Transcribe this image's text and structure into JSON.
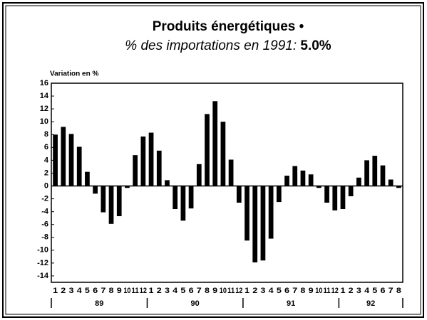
{
  "chart_data": {
    "type": "bar",
    "title": "Produits énergétiques •",
    "subtitle": "% des importations en 1991:",
    "subtitle_value": "5.0%",
    "y_label": "Variation en %",
    "categories": [
      "1",
      "2",
      "3",
      "4",
      "5",
      "6",
      "7",
      "8",
      "9",
      "10",
      "11",
      "12",
      "1",
      "2",
      "3",
      "4",
      "5",
      "6",
      "7",
      "8",
      "9",
      "10",
      "11",
      "12",
      "1",
      "2",
      "3",
      "4",
      "5",
      "6",
      "7",
      "8",
      "9",
      "10",
      "11",
      "12",
      "1",
      "2",
      "3",
      "4",
      "5",
      "6",
      "7",
      "8"
    ],
    "groups": [
      "89",
      "90",
      "91",
      "92"
    ],
    "values": [
      8.0,
      9.2,
      8.1,
      6.1,
      2.2,
      -1.2,
      -4.1,
      -5.9,
      -4.7,
      -0.3,
      4.8,
      7.7,
      8.3,
      5.5,
      0.9,
      -3.6,
      -5.4,
      -3.5,
      3.4,
      11.2,
      13.2,
      10.0,
      4.1,
      -2.6,
      -8.5,
      -11.9,
      -11.6,
      -8.2,
      -2.5,
      1.6,
      3.1,
      2.4,
      1.8,
      -0.3,
      -2.6,
      -3.8,
      -3.6,
      -1.6,
      1.3,
      4.0,
      4.7,
      3.2,
      1.0,
      -0.3
    ],
    "color": "#000000",
    "ylim": [
      -15,
      16
    ],
    "yticks": [
      -14,
      -12,
      -10,
      -8,
      -6,
      -4,
      -2,
      0,
      2,
      4,
      6,
      8,
      10,
      12,
      14,
      16
    ],
    "grid": false
  }
}
